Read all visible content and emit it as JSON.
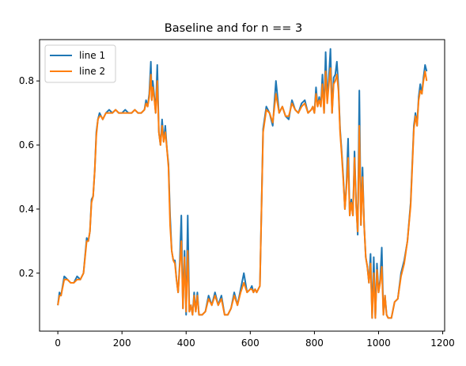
{
  "chart_data": {
    "type": "line",
    "title": "Baseline and for n == 3",
    "xlabel": "",
    "ylabel": "",
    "xlim": [
      -57,
      1206
    ],
    "ylim": [
      0.019,
      0.929
    ],
    "xticks": [
      0,
      200,
      400,
      600,
      800,
      1000,
      1200
    ],
    "yticks": [
      0.2,
      0.4,
      0.6,
      0.8
    ],
    "xtick_labels": [
      "0",
      "200",
      "400",
      "600",
      "800",
      "1000",
      "1200"
    ],
    "ytick_labels": [
      "0.2",
      "0.4",
      "0.6",
      "0.8"
    ],
    "grid": false,
    "legend_position": "upper-left",
    "series": [
      {
        "name": "line 1",
        "color": "#1f77b4",
        "x": [
          0,
          5,
          10,
          20,
          30,
          40,
          50,
          60,
          70,
          80,
          90,
          95,
          100,
          105,
          110,
          115,
          120,
          125,
          130,
          135,
          140,
          150,
          160,
          170,
          180,
          190,
          200,
          210,
          220,
          230,
          240,
          250,
          260,
          270,
          275,
          280,
          285,
          290,
          293,
          296,
          300,
          305,
          310,
          315,
          320,
          325,
          330,
          335,
          340,
          345,
          350,
          355,
          360,
          365,
          370,
          375,
          380,
          385,
          390,
          395,
          400,
          405,
          410,
          415,
          420,
          425,
          430,
          435,
          440,
          450,
          460,
          470,
          480,
          490,
          500,
          510,
          520,
          530,
          540,
          550,
          560,
          570,
          580,
          590,
          600,
          605,
          610,
          615,
          620,
          625,
          630,
          640,
          650,
          660,
          670,
          680,
          690,
          700,
          710,
          720,
          730,
          740,
          750,
          760,
          770,
          780,
          790,
          795,
          800,
          805,
          810,
          815,
          820,
          825,
          830,
          835,
          840,
          845,
          850,
          855,
          860,
          865,
          870,
          875,
          880,
          885,
          890,
          895,
          900,
          905,
          910,
          915,
          920,
          925,
          930,
          935,
          940,
          945,
          950,
          955,
          960,
          965,
          970,
          975,
          980,
          985,
          990,
          995,
          1000,
          1005,
          1010,
          1015,
          1020,
          1025,
          1030,
          1040,
          1050,
          1060,
          1070,
          1080,
          1090,
          1100,
          1110,
          1115,
          1120,
          1125,
          1130,
          1135,
          1140,
          1145,
          1150
        ],
        "values": [
          0.1,
          0.14,
          0.13,
          0.19,
          0.18,
          0.17,
          0.17,
          0.19,
          0.18,
          0.2,
          0.31,
          0.3,
          0.33,
          0.43,
          0.44,
          0.52,
          0.64,
          0.68,
          0.7,
          0.69,
          0.68,
          0.7,
          0.71,
          0.7,
          0.71,
          0.7,
          0.7,
          0.71,
          0.7,
          0.7,
          0.71,
          0.7,
          0.7,
          0.71,
          0.74,
          0.72,
          0.76,
          0.86,
          0.74,
          0.8,
          0.76,
          0.7,
          0.85,
          0.64,
          0.6,
          0.68,
          0.61,
          0.66,
          0.59,
          0.54,
          0.38,
          0.27,
          0.24,
          0.24,
          0.18,
          0.14,
          0.23,
          0.38,
          0.09,
          0.27,
          0.07,
          0.38,
          0.08,
          0.1,
          0.07,
          0.14,
          0.08,
          0.14,
          0.07,
          0.07,
          0.08,
          0.13,
          0.1,
          0.14,
          0.1,
          0.13,
          0.07,
          0.07,
          0.09,
          0.14,
          0.1,
          0.15,
          0.2,
          0.14,
          0.15,
          0.16,
          0.14,
          0.15,
          0.14,
          0.15,
          0.16,
          0.65,
          0.72,
          0.7,
          0.66,
          0.8,
          0.7,
          0.72,
          0.69,
          0.68,
          0.74,
          0.71,
          0.7,
          0.73,
          0.74,
          0.7,
          0.71,
          0.72,
          0.7,
          0.78,
          0.72,
          0.75,
          0.72,
          0.82,
          0.7,
          0.89,
          0.74,
          0.81,
          0.9,
          0.7,
          0.81,
          0.82,
          0.86,
          0.78,
          0.65,
          0.58,
          0.5,
          0.4,
          0.48,
          0.62,
          0.38,
          0.43,
          0.38,
          0.58,
          0.42,
          0.32,
          0.77,
          0.35,
          0.53,
          0.35,
          0.25,
          0.22,
          0.17,
          0.26,
          0.06,
          0.25,
          0.06,
          0.23,
          0.14,
          0.18,
          0.28,
          0.07,
          0.13,
          0.07,
          0.06,
          0.06,
          0.11,
          0.12,
          0.2,
          0.24,
          0.3,
          0.42,
          0.66,
          0.7,
          0.66,
          0.75,
          0.79,
          0.76,
          0.81,
          0.85,
          0.83
        ]
      },
      {
        "name": "line 2",
        "color": "#ff7f0e",
        "x": [
          0,
          5,
          10,
          20,
          30,
          40,
          50,
          60,
          70,
          80,
          90,
          95,
          100,
          105,
          110,
          115,
          120,
          125,
          130,
          135,
          140,
          150,
          160,
          170,
          180,
          190,
          200,
          210,
          220,
          230,
          240,
          250,
          260,
          270,
          275,
          280,
          285,
          290,
          293,
          296,
          300,
          305,
          310,
          315,
          320,
          325,
          330,
          335,
          340,
          345,
          350,
          355,
          360,
          365,
          370,
          375,
          380,
          385,
          390,
          395,
          400,
          405,
          410,
          415,
          420,
          425,
          430,
          435,
          440,
          450,
          460,
          470,
          480,
          490,
          500,
          510,
          520,
          530,
          540,
          550,
          560,
          570,
          580,
          590,
          600,
          605,
          610,
          615,
          620,
          625,
          630,
          640,
          650,
          660,
          670,
          680,
          690,
          700,
          710,
          720,
          730,
          740,
          750,
          760,
          770,
          780,
          790,
          795,
          800,
          805,
          810,
          815,
          820,
          825,
          830,
          835,
          840,
          845,
          850,
          855,
          860,
          865,
          870,
          875,
          880,
          885,
          890,
          895,
          900,
          905,
          910,
          915,
          920,
          925,
          930,
          935,
          940,
          945,
          950,
          955,
          960,
          965,
          970,
          975,
          980,
          985,
          990,
          995,
          1000,
          1005,
          1010,
          1015,
          1020,
          1025,
          1030,
          1040,
          1050,
          1060,
          1070,
          1080,
          1090,
          1100,
          1110,
          1115,
          1120,
          1125,
          1130,
          1135,
          1140,
          1145,
          1150
        ],
        "values": [
          0.1,
          0.13,
          0.13,
          0.18,
          0.18,
          0.17,
          0.17,
          0.18,
          0.18,
          0.2,
          0.3,
          0.3,
          0.33,
          0.42,
          0.44,
          0.52,
          0.63,
          0.68,
          0.69,
          0.69,
          0.68,
          0.7,
          0.7,
          0.7,
          0.71,
          0.7,
          0.7,
          0.7,
          0.7,
          0.7,
          0.71,
          0.7,
          0.7,
          0.71,
          0.73,
          0.72,
          0.75,
          0.82,
          0.74,
          0.78,
          0.75,
          0.7,
          0.8,
          0.64,
          0.6,
          0.66,
          0.61,
          0.64,
          0.59,
          0.53,
          0.35,
          0.27,
          0.24,
          0.23,
          0.18,
          0.14,
          0.22,
          0.3,
          0.09,
          0.25,
          0.08,
          0.27,
          0.08,
          0.1,
          0.07,
          0.13,
          0.08,
          0.13,
          0.07,
          0.07,
          0.08,
          0.12,
          0.1,
          0.13,
          0.1,
          0.12,
          0.07,
          0.07,
          0.09,
          0.13,
          0.1,
          0.14,
          0.17,
          0.14,
          0.15,
          0.15,
          0.14,
          0.15,
          0.14,
          0.15,
          0.16,
          0.64,
          0.71,
          0.7,
          0.67,
          0.76,
          0.7,
          0.72,
          0.69,
          0.69,
          0.73,
          0.71,
          0.7,
          0.72,
          0.73,
          0.7,
          0.71,
          0.72,
          0.7,
          0.76,
          0.72,
          0.74,
          0.72,
          0.79,
          0.7,
          0.83,
          0.73,
          0.79,
          0.84,
          0.7,
          0.79,
          0.8,
          0.82,
          0.77,
          0.64,
          0.57,
          0.49,
          0.4,
          0.47,
          0.56,
          0.38,
          0.42,
          0.38,
          0.56,
          0.41,
          0.33,
          0.66,
          0.35,
          0.5,
          0.35,
          0.25,
          0.22,
          0.17,
          0.23,
          0.06,
          0.2,
          0.06,
          0.21,
          0.14,
          0.17,
          0.22,
          0.07,
          0.13,
          0.07,
          0.06,
          0.06,
          0.11,
          0.12,
          0.19,
          0.23,
          0.3,
          0.41,
          0.65,
          0.69,
          0.66,
          0.74,
          0.77,
          0.76,
          0.8,
          0.83,
          0.8
        ]
      }
    ]
  }
}
